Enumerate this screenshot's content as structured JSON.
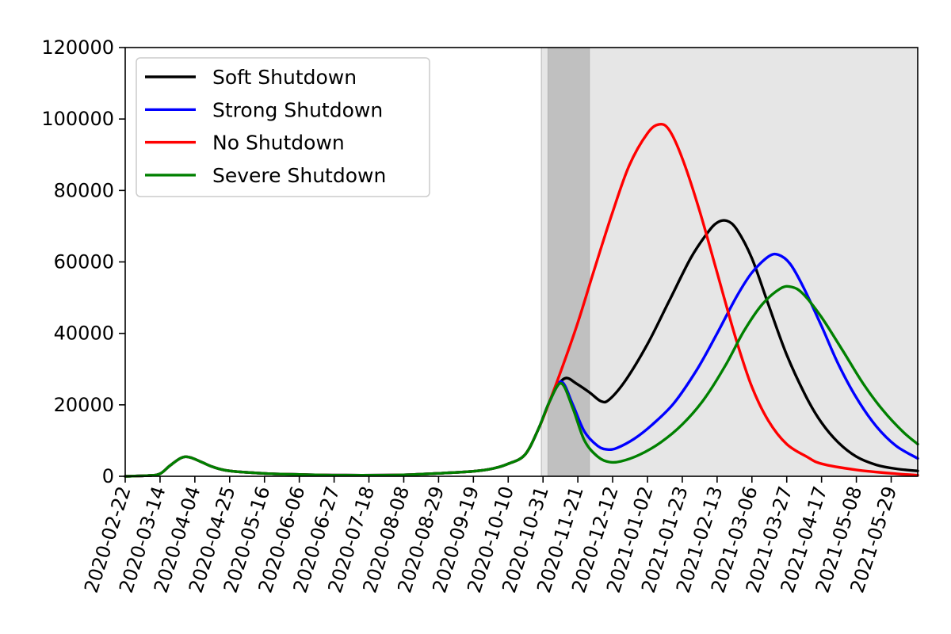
{
  "chart_data": {
    "type": "line",
    "title": "",
    "xlabel": "",
    "ylabel": "",
    "ylim": [
      0,
      120000
    ],
    "xlim": [
      "2020-02-22",
      "2021-06-14"
    ],
    "y_ticks": [
      0,
      20000,
      40000,
      60000,
      80000,
      100000,
      120000
    ],
    "x_ticks": [
      "2020-02-22",
      "2020-03-14",
      "2020-04-04",
      "2020-04-25",
      "2020-05-16",
      "2020-06-06",
      "2020-06-27",
      "2020-07-18",
      "2020-08-08",
      "2020-08-29",
      "2020-09-19",
      "2020-10-10",
      "2020-10-31",
      "2020-11-21",
      "2020-12-12",
      "2021-01-02",
      "2021-01-23",
      "2021-02-13",
      "2021-03-06",
      "2021-03-27",
      "2021-04-17",
      "2021-05-08",
      "2021-05-29"
    ],
    "grid": false,
    "legend_position": "upper-left",
    "shaded_regions": [
      {
        "start": "2020-10-30",
        "end": "2021-06-14",
        "color": "#e6e6e6"
      },
      {
        "start": "2020-11-03",
        "end": "2020-11-28",
        "color": "#c0c0c0"
      }
    ],
    "series": [
      {
        "name": "Soft Shutdown",
        "color": "#000000",
        "points": [
          [
            "2020-02-22",
            0
          ],
          [
            "2020-03-07",
            200
          ],
          [
            "2020-03-14",
            700
          ],
          [
            "2020-03-20",
            3000
          ],
          [
            "2020-03-27",
            5200
          ],
          [
            "2020-04-01",
            5300
          ],
          [
            "2020-04-08",
            4000
          ],
          [
            "2020-04-15",
            2600
          ],
          [
            "2020-04-25",
            1500
          ],
          [
            "2020-05-16",
            800
          ],
          [
            "2020-06-06",
            500
          ],
          [
            "2020-07-04",
            300
          ],
          [
            "2020-08-08",
            400
          ],
          [
            "2020-09-01",
            900
          ],
          [
            "2020-09-19",
            1400
          ],
          [
            "2020-10-01",
            2200
          ],
          [
            "2020-10-10",
            3500
          ],
          [
            "2020-10-20",
            6000
          ],
          [
            "2020-10-28",
            13000
          ],
          [
            "2020-11-04",
            21000
          ],
          [
            "2020-11-09",
            25500
          ],
          [
            "2020-11-14",
            27500
          ],
          [
            "2020-11-20",
            26000
          ],
          [
            "2020-11-28",
            23500
          ],
          [
            "2020-12-05",
            21000
          ],
          [
            "2020-12-10",
            21500
          ],
          [
            "2020-12-20",
            27000
          ],
          [
            "2021-01-02",
            37000
          ],
          [
            "2021-01-15",
            49000
          ],
          [
            "2021-01-28",
            61000
          ],
          [
            "2021-02-07",
            68000
          ],
          [
            "2021-02-13",
            71000
          ],
          [
            "2021-02-19",
            71500
          ],
          [
            "2021-02-25",
            69000
          ],
          [
            "2021-03-06",
            61000
          ],
          [
            "2021-03-16",
            48000
          ],
          [
            "2021-03-27",
            34000
          ],
          [
            "2021-04-08",
            22000
          ],
          [
            "2021-04-17",
            15000
          ],
          [
            "2021-04-27",
            9500
          ],
          [
            "2021-05-08",
            5500
          ],
          [
            "2021-05-20",
            3200
          ],
          [
            "2021-06-01",
            2100
          ],
          [
            "2021-06-14",
            1500
          ]
        ]
      },
      {
        "name": "Strong Shutdown",
        "color": "#0000ff",
        "points": [
          [
            "2020-02-22",
            0
          ],
          [
            "2020-03-07",
            200
          ],
          [
            "2020-03-14",
            700
          ],
          [
            "2020-03-20",
            3000
          ],
          [
            "2020-03-27",
            5200
          ],
          [
            "2020-04-01",
            5300
          ],
          [
            "2020-04-08",
            4000
          ],
          [
            "2020-04-15",
            2600
          ],
          [
            "2020-04-25",
            1500
          ],
          [
            "2020-05-16",
            800
          ],
          [
            "2020-06-06",
            500
          ],
          [
            "2020-07-04",
            300
          ],
          [
            "2020-08-08",
            400
          ],
          [
            "2020-09-01",
            900
          ],
          [
            "2020-09-19",
            1400
          ],
          [
            "2020-10-01",
            2200
          ],
          [
            "2020-10-10",
            3500
          ],
          [
            "2020-10-20",
            6000
          ],
          [
            "2020-10-28",
            13000
          ],
          [
            "2020-11-04",
            21000
          ],
          [
            "2020-11-11",
            26500
          ],
          [
            "2020-11-18",
            20000
          ],
          [
            "2020-11-25",
            12500
          ],
          [
            "2020-12-03",
            8500
          ],
          [
            "2020-12-09",
            7500
          ],
          [
            "2020-12-15",
            8000
          ],
          [
            "2020-12-25",
            10500
          ],
          [
            "2021-01-05",
            14500
          ],
          [
            "2021-01-18",
            20500
          ],
          [
            "2021-02-01",
            30000
          ],
          [
            "2021-02-13",
            40000
          ],
          [
            "2021-02-25",
            50500
          ],
          [
            "2021-03-06",
            57000
          ],
          [
            "2021-03-16",
            61500
          ],
          [
            "2021-03-22",
            62000
          ],
          [
            "2021-03-29",
            59500
          ],
          [
            "2021-04-06",
            53000
          ],
          [
            "2021-04-17",
            42000
          ],
          [
            "2021-04-27",
            31500
          ],
          [
            "2021-05-08",
            22000
          ],
          [
            "2021-05-20",
            14000
          ],
          [
            "2021-06-01",
            8500
          ],
          [
            "2021-06-14",
            5000
          ]
        ]
      },
      {
        "name": "No Shutdown",
        "color": "#ff0000",
        "points": [
          [
            "2020-02-22",
            0
          ],
          [
            "2020-03-07",
            200
          ],
          [
            "2020-03-14",
            700
          ],
          [
            "2020-03-20",
            3000
          ],
          [
            "2020-03-27",
            5200
          ],
          [
            "2020-04-01",
            5300
          ],
          [
            "2020-04-08",
            4000
          ],
          [
            "2020-04-15",
            2600
          ],
          [
            "2020-04-25",
            1500
          ],
          [
            "2020-05-16",
            800
          ],
          [
            "2020-06-06",
            500
          ],
          [
            "2020-07-04",
            300
          ],
          [
            "2020-08-08",
            400
          ],
          [
            "2020-09-01",
            900
          ],
          [
            "2020-09-19",
            1400
          ],
          [
            "2020-10-01",
            2200
          ],
          [
            "2020-10-10",
            3500
          ],
          [
            "2020-10-20",
            6000
          ],
          [
            "2020-10-28",
            13000
          ],
          [
            "2020-11-04",
            21000
          ],
          [
            "2020-11-12",
            31000
          ],
          [
            "2020-11-21",
            43000
          ],
          [
            "2020-12-01",
            58000
          ],
          [
            "2020-12-12",
            74000
          ],
          [
            "2020-12-22",
            87000
          ],
          [
            "2021-01-02",
            96000
          ],
          [
            "2021-01-09",
            98500
          ],
          [
            "2021-01-15",
            97000
          ],
          [
            "2021-01-23",
            89000
          ],
          [
            "2021-02-02",
            75000
          ],
          [
            "2021-02-13",
            57000
          ],
          [
            "2021-02-24",
            39000
          ],
          [
            "2021-03-06",
            25000
          ],
          [
            "2021-03-16",
            15500
          ],
          [
            "2021-03-27",
            9000
          ],
          [
            "2021-04-08",
            5500
          ],
          [
            "2021-04-17",
            3500
          ],
          [
            "2021-05-08",
            1800
          ],
          [
            "2021-06-01",
            700
          ],
          [
            "2021-06-14",
            300
          ]
        ]
      },
      {
        "name": "Severe Shutdown",
        "color": "#008000",
        "points": [
          [
            "2020-02-22",
            0
          ],
          [
            "2020-03-07",
            200
          ],
          [
            "2020-03-14",
            700
          ],
          [
            "2020-03-20",
            3000
          ],
          [
            "2020-03-27",
            5200
          ],
          [
            "2020-04-01",
            5300
          ],
          [
            "2020-04-08",
            4000
          ],
          [
            "2020-04-15",
            2600
          ],
          [
            "2020-04-25",
            1500
          ],
          [
            "2020-05-16",
            800
          ],
          [
            "2020-06-06",
            500
          ],
          [
            "2020-07-04",
            300
          ],
          [
            "2020-08-08",
            400
          ],
          [
            "2020-09-01",
            900
          ],
          [
            "2020-09-19",
            1400
          ],
          [
            "2020-10-01",
            2200
          ],
          [
            "2020-10-10",
            3500
          ],
          [
            "2020-10-20",
            6000
          ],
          [
            "2020-10-28",
            13000
          ],
          [
            "2020-11-04",
            21000
          ],
          [
            "2020-11-11",
            26000
          ],
          [
            "2020-11-18",
            19000
          ],
          [
            "2020-11-25",
            10000
          ],
          [
            "2020-12-03",
            5500
          ],
          [
            "2020-12-10",
            4000
          ],
          [
            "2020-12-17",
            4200
          ],
          [
            "2020-12-28",
            6000
          ],
          [
            "2021-01-10",
            9500
          ],
          [
            "2021-01-23",
            14500
          ],
          [
            "2021-02-05",
            21500
          ],
          [
            "2021-02-18",
            31000
          ],
          [
            "2021-03-01",
            40500
          ],
          [
            "2021-03-12",
            48000
          ],
          [
            "2021-03-23",
            52500
          ],
          [
            "2021-03-30",
            53000
          ],
          [
            "2021-04-06",
            51000
          ],
          [
            "2021-04-17",
            44500
          ],
          [
            "2021-04-30",
            35000
          ],
          [
            "2021-05-12",
            26000
          ],
          [
            "2021-05-24",
            18500
          ],
          [
            "2021-06-05",
            12500
          ],
          [
            "2021-06-14",
            9000
          ]
        ]
      }
    ]
  }
}
